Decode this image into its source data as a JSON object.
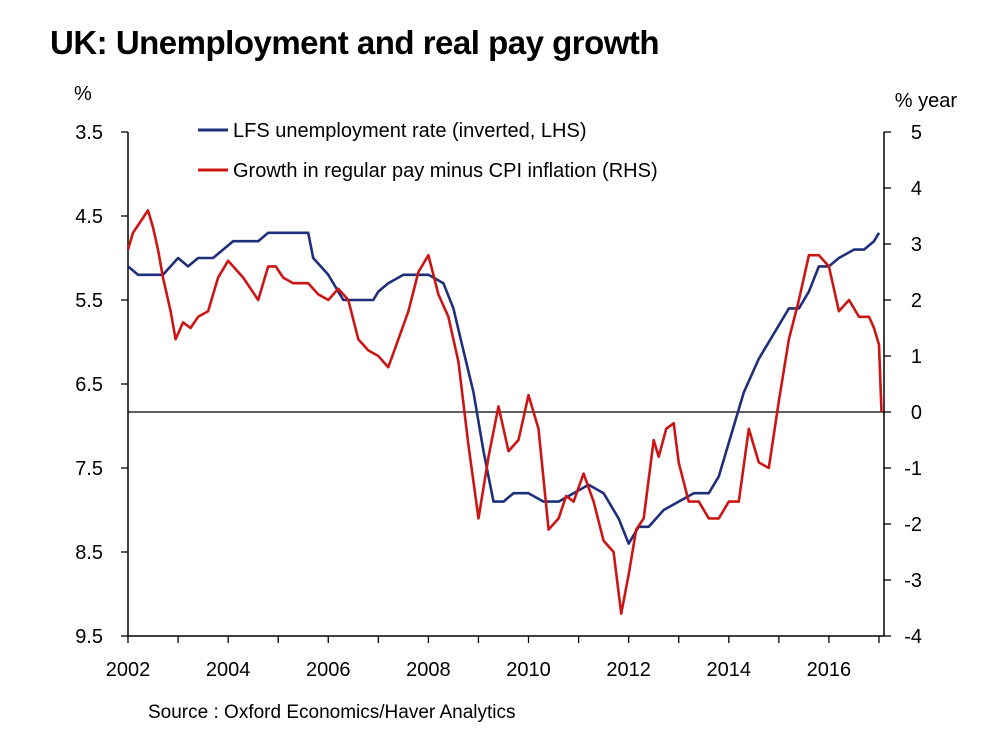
{
  "title": "UK: Unemployment and real pay growth",
  "source": "Source : Oxford Economics/Haver Analytics",
  "chart_data": {
    "type": "line",
    "title": "UK: Unemployment and real pay growth",
    "left_axis": {
      "unit_label": "%",
      "inverted": true,
      "range": [
        3.5,
        9.5
      ],
      "ticks": [
        "3.5",
        "4.5",
        "5.5",
        "6.5",
        "7.5",
        "8.5",
        "9.5"
      ]
    },
    "right_axis": {
      "unit_label": "% year",
      "range": [
        -4,
        5
      ],
      "ticks": [
        "5",
        "4",
        "3",
        "2",
        "1",
        "0",
        "-1",
        "-2",
        "-3",
        "-4"
      ]
    },
    "x_axis": {
      "range": [
        2002,
        2017.1
      ],
      "ticks": [
        "2002",
        "2004",
        "2006",
        "2008",
        "2010",
        "2012",
        "2014",
        "2016"
      ]
    },
    "zero_line_rhs": 0,
    "legend_position": "top-center",
    "colors": {
      "unemployment": "#1f2f7a",
      "real_pay": "#cc1515"
    },
    "series": [
      {
        "name": "LFS unemployment rate (inverted, LHS)",
        "axis": "left",
        "x": [
          2002.0,
          2002.2,
          2002.5,
          2002.7,
          2003.0,
          2003.2,
          2003.4,
          2003.7,
          2003.9,
          2004.1,
          2004.4,
          2004.6,
          2004.8,
          2005.0,
          2005.2,
          2005.4,
          2005.6,
          2005.7,
          2006.0,
          2006.3,
          2006.6,
          2006.9,
          2007.0,
          2007.2,
          2007.5,
          2007.8,
          2008.0,
          2008.3,
          2008.5,
          2008.7,
          2008.9,
          2009.1,
          2009.3,
          2009.5,
          2009.7,
          2010.0,
          2010.3,
          2010.6,
          2010.9,
          2011.2,
          2011.5,
          2011.8,
          2012.0,
          2012.2,
          2012.4,
          2012.7,
          2013.0,
          2013.3,
          2013.6,
          2013.8,
          2014.0,
          2014.3,
          2014.6,
          2014.9,
          2015.2,
          2015.4,
          2015.6,
          2015.8,
          2016.0,
          2016.2,
          2016.5,
          2016.7,
          2016.9,
          2017.0
        ],
        "y": [
          5.1,
          5.2,
          5.2,
          5.2,
          5.0,
          5.1,
          5.0,
          5.0,
          4.9,
          4.8,
          4.8,
          4.8,
          4.7,
          4.7,
          4.7,
          4.7,
          4.7,
          5.0,
          5.2,
          5.5,
          5.5,
          5.5,
          5.4,
          5.3,
          5.2,
          5.2,
          5.2,
          5.3,
          5.6,
          6.1,
          6.6,
          7.3,
          7.9,
          7.9,
          7.8,
          7.8,
          7.9,
          7.9,
          7.8,
          7.7,
          7.8,
          8.1,
          8.4,
          8.2,
          8.2,
          8.0,
          7.9,
          7.8,
          7.8,
          7.6,
          7.2,
          6.6,
          6.2,
          5.9,
          5.6,
          5.6,
          5.4,
          5.1,
          5.1,
          5.0,
          4.9,
          4.9,
          4.8,
          4.7
        ]
      },
      {
        "name": "Growth in regular pay minus CPI inflation (RHS)",
        "axis": "right",
        "x": [
          2002.0,
          2002.1,
          2002.25,
          2002.4,
          2002.5,
          2002.6,
          2002.7,
          2002.85,
          2002.95,
          2003.1,
          2003.25,
          2003.4,
          2003.6,
          2003.8,
          2004.0,
          2004.3,
          2004.6,
          2004.8,
          2004.95,
          2005.1,
          2005.3,
          2005.6,
          2005.8,
          2006.0,
          2006.2,
          2006.4,
          2006.6,
          2006.8,
          2007.0,
          2007.2,
          2007.4,
          2007.6,
          2007.8,
          2008.0,
          2008.2,
          2008.4,
          2008.6,
          2008.8,
          2009.0,
          2009.2,
          2009.4,
          2009.6,
          2009.8,
          2009.9,
          2010.0,
          2010.2,
          2010.4,
          2010.6,
          2010.75,
          2010.9,
          2011.1,
          2011.3,
          2011.5,
          2011.7,
          2011.85,
          2012.0,
          2012.15,
          2012.3,
          2012.5,
          2012.6,
          2012.75,
          2012.9,
          2013.0,
          2013.2,
          2013.4,
          2013.6,
          2013.8,
          2014.0,
          2014.2,
          2014.4,
          2014.6,
          2014.8,
          2015.0,
          2015.2,
          2015.4,
          2015.6,
          2015.8,
          2016.0,
          2016.2,
          2016.4,
          2016.6,
          2016.8,
          2016.9,
          2017.0,
          2017.05
        ],
        "y": [
          2.9,
          3.2,
          3.4,
          3.6,
          3.3,
          2.9,
          2.4,
          1.8,
          1.3,
          1.6,
          1.5,
          1.7,
          1.8,
          2.4,
          2.7,
          2.4,
          2.0,
          2.6,
          2.6,
          2.4,
          2.3,
          2.3,
          2.1,
          2.0,
          2.2,
          2.0,
          1.3,
          1.1,
          1.0,
          0.8,
          1.3,
          1.8,
          2.5,
          2.8,
          2.1,
          1.7,
          0.9,
          -0.6,
          -1.9,
          -0.8,
          0.1,
          -0.7,
          -0.5,
          -0.1,
          0.3,
          -0.3,
          -2.1,
          -1.9,
          -1.5,
          -1.6,
          -1.1,
          -1.6,
          -2.3,
          -2.5,
          -3.6,
          -2.9,
          -2.1,
          -1.9,
          -0.5,
          -0.8,
          -0.3,
          -0.2,
          -0.9,
          -1.6,
          -1.6,
          -1.9,
          -1.9,
          -1.6,
          -1.6,
          -0.3,
          -0.9,
          -1.0,
          0.2,
          1.3,
          2.0,
          2.8,
          2.8,
          2.6,
          1.8,
          2.0,
          1.7,
          1.7,
          1.5,
          1.2,
          0.0
        ]
      }
    ]
  }
}
